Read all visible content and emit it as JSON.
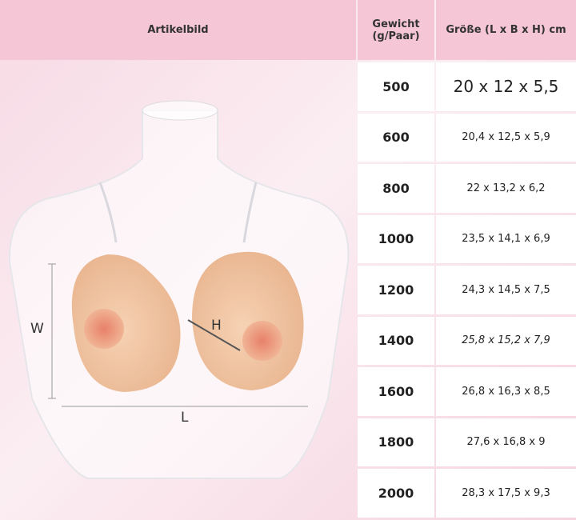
{
  "header": {
    "image": "Artikelbild",
    "weight": [
      "Gewicht",
      "(g/Paar)"
    ],
    "size": "Größe (L x B x H) cm"
  },
  "image": {
    "labels": {
      "width": "W",
      "height": "H",
      "length": "L"
    }
  },
  "table": {
    "rows": [
      [
        "500",
        "20 x 12 x 5,5"
      ],
      [
        "600",
        "20,4 x 12,5 x 5,9"
      ],
      [
        "800",
        "22 x 13,2 x 6,2"
      ],
      [
        "1000",
        "23,5 x 14,1 x 6,9"
      ],
      [
        "1200",
        "24,3 x 14,5 x 7,5"
      ],
      [
        "1400",
        "25,8 x 15,2 x 7,9"
      ],
      [
        "1600",
        "26,8 x 16,3 x 8,5"
      ],
      [
        "1800",
        "27,6 x 16,8 x 9"
      ],
      [
        "2000",
        "28,3 x 17,5 x 9,3"
      ]
    ]
  }
}
